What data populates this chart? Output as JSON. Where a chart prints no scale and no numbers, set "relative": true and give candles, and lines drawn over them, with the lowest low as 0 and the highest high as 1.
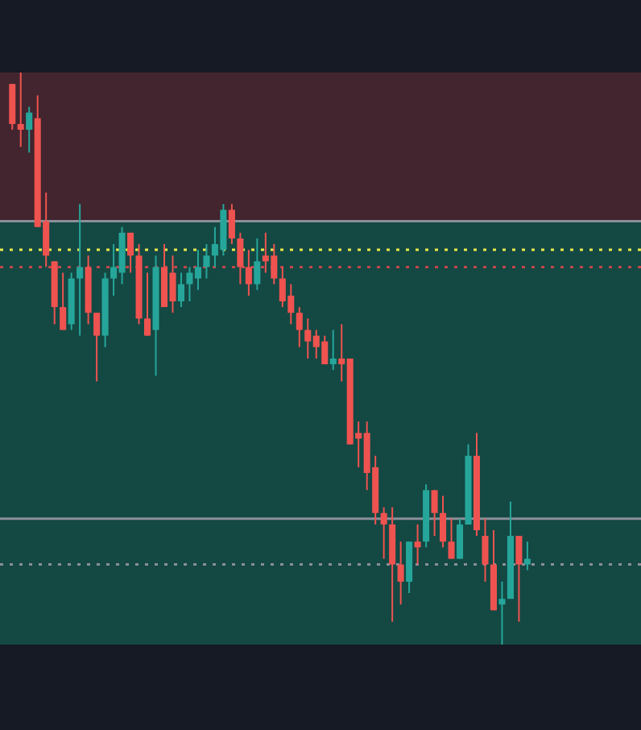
{
  "chart_data": {
    "type": "candlestick",
    "relative": true,
    "categories": [
      null,
      null,
      null,
      null,
      null,
      null,
      null,
      null,
      null,
      null,
      null,
      null,
      null,
      null,
      null,
      null,
      null,
      null,
      null,
      null,
      null,
      null,
      null,
      null,
      null,
      null,
      null,
      null,
      null,
      null,
      null,
      null,
      null,
      null,
      null,
      null,
      null,
      null,
      null,
      null,
      null,
      null,
      null,
      null,
      null,
      null,
      null,
      null,
      null,
      null,
      null,
      null,
      null,
      null,
      null,
      null,
      null,
      null,
      null,
      null,
      null,
      null
    ],
    "ohlc": [
      [
        0.98,
        0.98,
        0.9,
        0.91
      ],
      [
        0.91,
        1.0,
        0.87,
        0.9
      ],
      [
        0.9,
        0.94,
        0.86,
        0.93
      ],
      [
        0.92,
        0.96,
        0.73,
        0.73
      ],
      [
        0.74,
        0.79,
        0.66,
        0.68
      ],
      [
        0.67,
        0.67,
        0.56,
        0.59
      ],
      [
        0.59,
        0.65,
        0.55,
        0.55
      ],
      [
        0.56,
        0.65,
        0.55,
        0.64
      ],
      [
        0.64,
        0.77,
        0.54,
        0.66
      ],
      [
        0.66,
        0.68,
        0.56,
        0.58
      ],
      [
        0.58,
        0.58,
        0.46,
        0.54
      ],
      [
        0.54,
        0.65,
        0.52,
        0.64
      ],
      [
        0.64,
        0.7,
        0.61,
        0.66
      ],
      [
        0.65,
        0.73,
        0.63,
        0.72
      ],
      [
        0.72,
        0.72,
        0.65,
        0.68
      ],
      [
        0.68,
        0.7,
        0.56,
        0.57
      ],
      [
        0.57,
        0.65,
        0.54,
        0.54
      ],
      [
        0.55,
        0.68,
        0.47,
        0.66
      ],
      [
        0.66,
        0.7,
        0.59,
        0.59
      ],
      [
        0.65,
        0.68,
        0.58,
        0.6
      ],
      [
        0.6,
        0.65,
        0.59,
        0.63
      ],
      [
        0.63,
        0.66,
        0.6,
        0.65
      ],
      [
        0.64,
        0.69,
        0.62,
        0.66
      ],
      [
        0.66,
        0.7,
        0.64,
        0.68
      ],
      [
        0.68,
        0.73,
        0.66,
        0.7
      ],
      [
        0.69,
        0.77,
        0.68,
        0.76
      ],
      [
        0.76,
        0.77,
        0.7,
        0.71
      ],
      [
        0.71,
        0.72,
        0.63,
        0.66
      ],
      [
        0.66,
        0.69,
        0.61,
        0.63
      ],
      [
        0.63,
        0.71,
        0.62,
        0.67
      ],
      [
        0.68,
        0.72,
        0.65,
        0.67
      ],
      [
        0.68,
        0.7,
        0.63,
        0.64
      ],
      [
        0.64,
        0.66,
        0.59,
        0.6
      ],
      [
        0.61,
        0.63,
        0.56,
        0.58
      ],
      [
        0.58,
        0.59,
        0.52,
        0.55
      ],
      [
        0.55,
        0.57,
        0.5,
        0.53
      ],
      [
        0.54,
        0.55,
        0.5,
        0.52
      ],
      [
        0.53,
        0.54,
        0.49,
        0.49
      ],
      [
        0.49,
        0.55,
        0.48,
        0.5
      ],
      [
        0.5,
        0.56,
        0.46,
        0.49
      ],
      [
        0.5,
        0.5,
        0.35,
        0.35
      ],
      [
        0.37,
        0.39,
        0.31,
        0.36
      ],
      [
        0.37,
        0.39,
        0.27,
        0.3
      ],
      [
        0.31,
        0.33,
        0.21,
        0.23
      ],
      [
        0.23,
        0.24,
        0.15,
        0.21
      ],
      [
        0.21,
        0.24,
        0.04,
        0.14
      ],
      [
        0.14,
        0.18,
        0.07,
        0.11
      ],
      [
        0.11,
        0.18,
        0.09,
        0.18
      ],
      [
        0.18,
        0.21,
        0.14,
        0.17
      ],
      [
        0.18,
        0.28,
        0.17,
        0.27
      ],
      [
        0.27,
        0.27,
        0.19,
        0.23
      ],
      [
        0.23,
        0.26,
        0.17,
        0.18
      ],
      [
        0.18,
        0.22,
        0.15,
        0.15
      ],
      [
        0.15,
        0.22,
        0.15,
        0.21
      ],
      [
        0.21,
        0.35,
        0.21,
        0.33
      ],
      [
        0.33,
        0.37,
        0.19,
        0.2
      ],
      [
        0.19,
        0.22,
        0.11,
        0.14
      ],
      [
        0.14,
        0.2,
        0.06,
        0.06
      ],
      [
        0.07,
        0.11,
        0.0,
        0.08
      ],
      [
        0.08,
        0.25,
        0.08,
        0.19
      ],
      [
        0.19,
        0.19,
        0.04,
        0.14
      ],
      [
        0.14,
        0.18,
        0.13,
        0.15
      ]
    ],
    "bands": [
      {
        "axis": "y",
        "from": 0.74,
        "to": 1,
        "color": "#42252e"
      },
      {
        "axis": "y",
        "from": 0,
        "to": 0.74,
        "color": "#144843"
      }
    ],
    "ref_lines": [
      {
        "axis": "y",
        "value": 0.74,
        "color": "#8a8f99",
        "line_style": "solid"
      },
      {
        "axis": "y",
        "value": 0.69,
        "color": "#e8e84a",
        "line_style": "dotted"
      },
      {
        "axis": "y",
        "value": 0.66,
        "color": "#c0474c",
        "line_style": "dotted"
      },
      {
        "axis": "y",
        "value": 0.22,
        "color": "#8a8f99",
        "line_style": "solid"
      },
      {
        "axis": "y",
        "value": 0.14,
        "color": "#8a8f99",
        "line_style": "dotted"
      }
    ]
  }
}
